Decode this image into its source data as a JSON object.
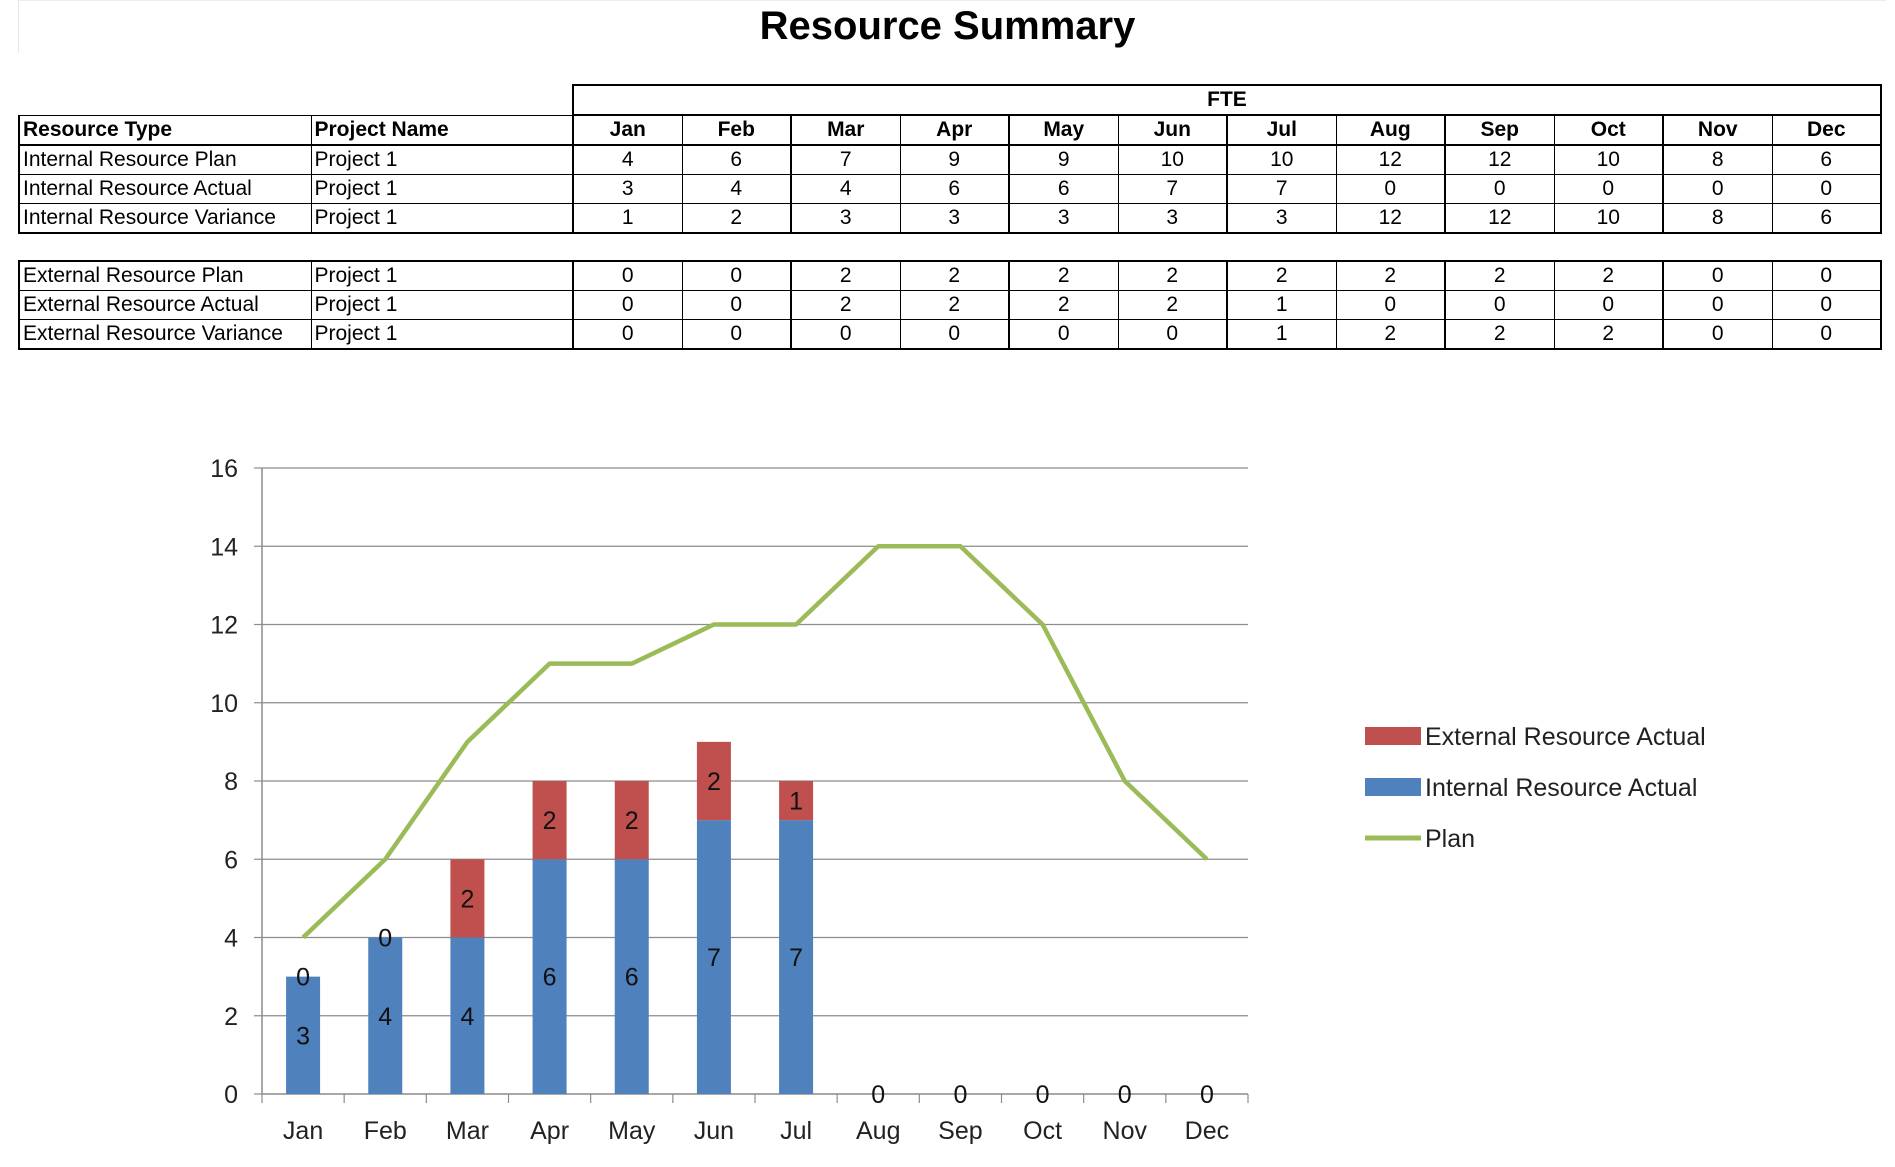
{
  "title": "Resource Summary",
  "table": {
    "group_header": "FTE",
    "col_resource_type": "Resource Type",
    "col_project_name": "Project Name",
    "months": [
      "Jan",
      "Feb",
      "Mar",
      "Apr",
      "May",
      "Jun",
      "Jul",
      "Aug",
      "Sep",
      "Oct",
      "Nov",
      "Dec"
    ],
    "internal_rows": [
      {
        "type": "Internal Resource Plan",
        "project": "Project 1",
        "values": [
          4,
          6,
          7,
          9,
          9,
          10,
          10,
          12,
          12,
          10,
          8,
          6
        ]
      },
      {
        "type": "Internal Resource Actual",
        "project": "Project 1",
        "values": [
          3,
          4,
          4,
          6,
          6,
          7,
          7,
          0,
          0,
          0,
          0,
          0
        ]
      },
      {
        "type": "Internal Resource Variance",
        "project": "Project 1",
        "values": [
          1,
          2,
          3,
          3,
          3,
          3,
          3,
          12,
          12,
          10,
          8,
          6
        ]
      }
    ],
    "external_rows": [
      {
        "type": "External Resource Plan",
        "project": "Project 1",
        "values": [
          0,
          0,
          2,
          2,
          2,
          2,
          2,
          2,
          2,
          2,
          0,
          0
        ]
      },
      {
        "type": "External Resource Actual",
        "project": "Project 1",
        "values": [
          0,
          0,
          2,
          2,
          2,
          2,
          1,
          0,
          0,
          0,
          0,
          0
        ]
      },
      {
        "type": "External Resource Variance",
        "project": "Project 1",
        "values": [
          0,
          0,
          0,
          0,
          0,
          0,
          1,
          2,
          2,
          2,
          0,
          0
        ]
      }
    ]
  },
  "chart_data": {
    "type": "bar",
    "stacked": true,
    "categories": [
      "Jan",
      "Feb",
      "Mar",
      "Apr",
      "May",
      "Jun",
      "Jul",
      "Aug",
      "Sep",
      "Oct",
      "Nov",
      "Dec"
    ],
    "series": [
      {
        "name": "Internal Resource Actual",
        "kind": "bar",
        "color": "#4f81bd",
        "values": [
          3,
          4,
          4,
          6,
          6,
          7,
          7,
          0,
          0,
          0,
          0,
          0
        ]
      },
      {
        "name": "External Resource Actual",
        "kind": "bar",
        "color": "#c0504d",
        "values": [
          0,
          0,
          2,
          2,
          2,
          2,
          1,
          0,
          0,
          0,
          0,
          0
        ]
      },
      {
        "name": "Plan",
        "kind": "line",
        "color": "#9bbb59",
        "values": [
          4,
          6,
          9,
          11,
          11,
          12,
          12,
          14,
          14,
          12,
          8,
          6
        ]
      }
    ],
    "ylim": [
      0,
      16
    ],
    "yticks": [
      0,
      2,
      4,
      6,
      8,
      10,
      12,
      14,
      16
    ],
    "grid": true,
    "legend_position": "right",
    "legend_order": [
      "External Resource Actual",
      "Internal Resource Actual",
      "Plan"
    ]
  }
}
